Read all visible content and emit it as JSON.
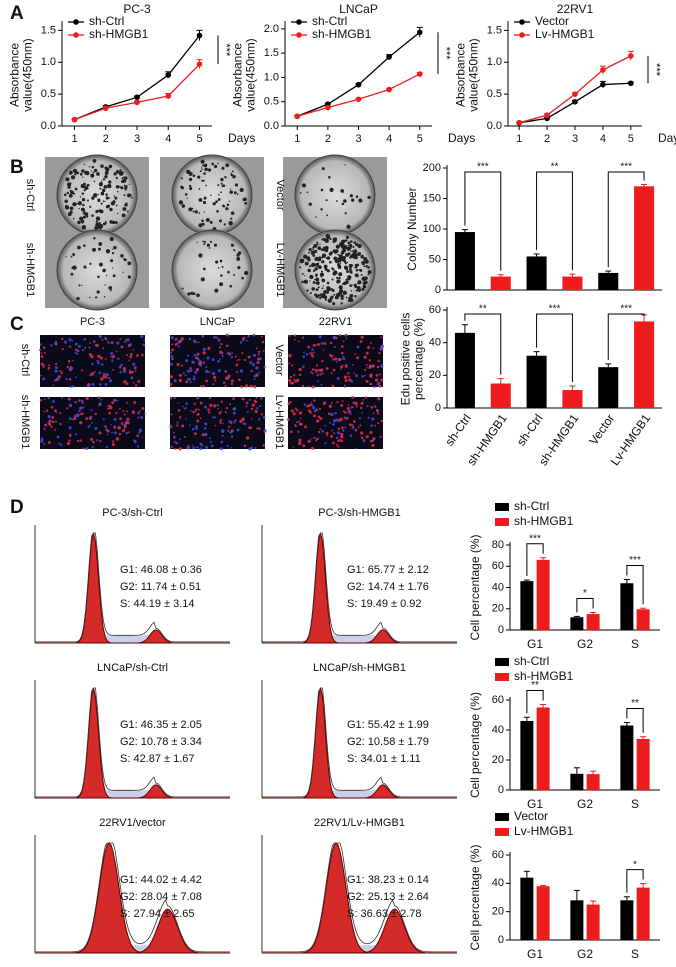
{
  "panel_labels": [
    "A",
    "B",
    "C",
    "D"
  ],
  "colony_images": {
    "row_labels": [
      "sh-Ctrl",
      "sh-HMGB1"
    ],
    "right_row_labels": [
      "Vector",
      "Lv-HMGB1"
    ]
  },
  "edu_images": {
    "titles": [
      "PC-3",
      "LNCaP",
      "22RV1"
    ],
    "row_labels": [
      "sh-Ctrl",
      "sh-HMGB1"
    ],
    "right_row_labels": [
      "Vector",
      "Lv-HMGB1"
    ]
  },
  "flow_panels": [
    {
      "title": "PC-3/sh-Ctrl",
      "stats": [
        "G1: 46.08 ± 0.36",
        "G2: 11.74 ± 0.51",
        "S: 44.19 ± 3.14"
      ]
    },
    {
      "title": "PC-3/sh-HMGB1",
      "stats": [
        "G1: 65.77 ± 2.12",
        "G2: 14.74 ± 1.76",
        "S: 19.49 ± 0.92"
      ]
    },
    {
      "title": "LNCaP/sh-Ctrl",
      "stats": [
        "G1: 46.35 ± 2.05",
        "G2: 10.78 ± 3.34",
        "S: 42.87 ± 1.67"
      ]
    },
    {
      "title": "LNCaP/sh-HMGB1",
      "stats": [
        "G1: 55.42 ± 1.99",
        "G2: 10.58 ± 1.79",
        "S: 34.01 ± 1.11"
      ]
    },
    {
      "title": "22RV1/vector",
      "stats": [
        "G1: 44.02 ± 4.42",
        "G2: 28.04 ± 7.08",
        "S: 27.94 ± 2.65"
      ]
    },
    {
      "title": "22RV1/Lv-HMGB1",
      "stats": [
        "G1: 38.23 ± 0.14",
        "G2: 25.13 ± 2.64",
        "S: 36.63 ± 2.78"
      ]
    }
  ],
  "chart_data": [
    {
      "type": "line",
      "title": "PC-3",
      "x": [
        1,
        2,
        3,
        4,
        5
      ],
      "xlim": [
        0.6,
        5.4
      ],
      "xticks": [
        1,
        2,
        3,
        4,
        5
      ],
      "xlabel": "Days",
      "ylabel": [
        "Absorbance",
        "value(450nm)"
      ],
      "ylim": [
        0,
        1.6
      ],
      "yticks": [
        {
          "value": 0,
          "label": "0.0"
        },
        0.5,
        {
          "value": 1,
          "label": "1.0"
        },
        1.5
      ],
      "series": [
        {
          "name": "sh-Ctrl",
          "color": "#000000",
          "values": [
            0.1,
            0.3,
            0.45,
            0.8,
            1.42
          ],
          "errors": [
            0.01,
            0.02,
            0.02,
            0.05,
            0.08
          ]
        },
        {
          "name": "sh-HMGB1",
          "color": "#ee1c1c",
          "values": [
            0.1,
            0.28,
            0.37,
            0.47,
            0.97
          ],
          "errors": [
            0.01,
            0.02,
            0.02,
            0.04,
            0.07
          ]
        }
      ],
      "annotation": "***"
    },
    {
      "type": "line",
      "title": "LNCaP",
      "x": [
        1,
        2,
        3,
        4,
        5
      ],
      "xlim": [
        0.6,
        5.4
      ],
      "xticks": [
        1,
        2,
        3,
        4,
        5
      ],
      "xlabel": "Days",
      "ylabel": [
        "Absorbance",
        "value(450nm)"
      ],
      "ylim": [
        0,
        2.1
      ],
      "yticks": [
        {
          "value": 0,
          "label": "0.0"
        },
        0.5,
        {
          "value": 1,
          "label": "1.0"
        },
        1.5,
        {
          "value": 2,
          "label": "2.0"
        }
      ],
      "series": [
        {
          "name": "sh-Ctrl",
          "color": "#000000",
          "values": [
            0.2,
            0.45,
            0.85,
            1.42,
            1.93
          ],
          "errors": [
            0.01,
            0.02,
            0.02,
            0.05,
            0.1
          ]
        },
        {
          "name": "sh-HMGB1",
          "color": "#ee1c1c",
          "values": [
            0.2,
            0.38,
            0.55,
            0.75,
            1.07
          ],
          "errors": [
            0.01,
            0.02,
            0.02,
            0.02,
            0.03
          ]
        }
      ],
      "annotation": "***"
    },
    {
      "type": "line",
      "title": "22RV1",
      "x": [
        1,
        2,
        3,
        4,
        5
      ],
      "xlim": [
        0.6,
        5.4
      ],
      "xticks": [
        1,
        2,
        3,
        4,
        5
      ],
      "xlabel": "Days",
      "ylabel": [
        "Absorbance",
        "value(450nm)"
      ],
      "ylim": [
        0,
        1.6
      ],
      "yticks": [
        {
          "value": 0,
          "label": "0.0"
        },
        0.5,
        {
          "value": 1,
          "label": "1.0"
        },
        1.5
      ],
      "series": [
        {
          "name": "Vector",
          "color": "#000000",
          "values": [
            0.05,
            0.12,
            0.38,
            0.65,
            0.67
          ],
          "errors": [
            0.01,
            0.01,
            0.02,
            0.05,
            0.02
          ]
        },
        {
          "name": "Lv-HMGB1",
          "color": "#ee1c1c",
          "values": [
            0.05,
            0.17,
            0.5,
            0.88,
            1.1
          ],
          "errors": [
            0.01,
            0.02,
            0.02,
            0.06,
            0.07
          ]
        }
      ],
      "annotation": "***"
    },
    {
      "type": "bar",
      "ylabel": [
        "Colony Number"
      ],
      "ylim": [
        0,
        200
      ],
      "yticks": [
        0,
        50,
        100,
        150,
        200
      ],
      "values": [
        95,
        22,
        55,
        22,
        28,
        170
      ],
      "errors": [
        4,
        3,
        4,
        4,
        3,
        3
      ],
      "colors": [
        "#000000",
        "#ee1c1c",
        "#000000",
        "#ee1c1c",
        "#000000",
        "#ee1c1c"
      ],
      "annotations": [
        "***",
        "**",
        "***"
      ]
    },
    {
      "type": "bar",
      "ylabel": [
        "Edu positive cells",
        "percentage (%)"
      ],
      "ylim": [
        0,
        60
      ],
      "yticks": [
        0,
        20,
        40,
        60
      ],
      "categories": [
        "sh-Ctrl",
        "sh-HMGB1",
        "sh-Ctrl",
        "sh-HMGB1",
        "Vector",
        "Lv-HMGB1"
      ],
      "values": [
        46,
        15,
        32,
        11,
        25,
        53
      ],
      "errors": [
        5,
        3,
        2.5,
        2.5,
        2,
        4
      ],
      "colors": [
        "#000000",
        "#ee1c1c",
        "#000000",
        "#ee1c1c",
        "#000000",
        "#ee1c1c"
      ],
      "annotations": [
        "**",
        "***",
        "***"
      ]
    },
    {
      "type": "grouped_bar",
      "ylabel": [
        "Cell percentage (%)"
      ],
      "ylim": [
        0,
        80
      ],
      "yticks": [
        0,
        20,
        40,
        60,
        80
      ],
      "categories": [
        "G1",
        "G2",
        "S"
      ],
      "series": [
        {
          "name": "sh-Ctrl",
          "color": "#000000",
          "values": [
            46,
            12,
            44
          ],
          "errors": [
            1,
            0.8,
            3.5
          ]
        },
        {
          "name": "sh-HMGB1",
          "color": "#ee1c1c",
          "values": [
            66,
            15,
            19.5
          ],
          "errors": [
            2,
            1.5,
            1
          ]
        }
      ],
      "annotations": [
        "***",
        "*",
        "***"
      ]
    },
    {
      "type": "grouped_bar",
      "ylabel": [
        "Cell percentage (%)"
      ],
      "ylim": [
        0,
        60
      ],
      "yticks": [
        0,
        20,
        40,
        60
      ],
      "categories": [
        "G1",
        "G2",
        "S"
      ],
      "series": [
        {
          "name": "sh-Ctrl",
          "color": "#000000",
          "values": [
            46,
            10.8,
            43
          ],
          "errors": [
            2.5,
            4,
            2
          ]
        },
        {
          "name": "sh-HMGB1",
          "color": "#ee1c1c",
          "values": [
            55,
            10.6,
            34
          ],
          "errors": [
            2,
            2,
            1.5
          ]
        }
      ],
      "annotations": [
        "**",
        null,
        "**"
      ]
    },
    {
      "type": "grouped_bar",
      "ylabel": [
        "Cell percentage (%)"
      ],
      "ylim": [
        0,
        60
      ],
      "yticks": [
        0,
        20,
        40,
        60
      ],
      "categories": [
        "G1",
        "G2",
        "S"
      ],
      "series": [
        {
          "name": "Vector",
          "color": "#000000",
          "values": [
            44,
            28,
            28
          ],
          "errors": [
            4.5,
            7,
            2.5
          ]
        },
        {
          "name": "Lv-HMGB1",
          "color": "#ee1c1c",
          "values": [
            38,
            25,
            37
          ],
          "errors": [
            0.5,
            2.5,
            2.8
          ]
        }
      ],
      "annotations": [
        null,
        null,
        "*"
      ]
    }
  ]
}
